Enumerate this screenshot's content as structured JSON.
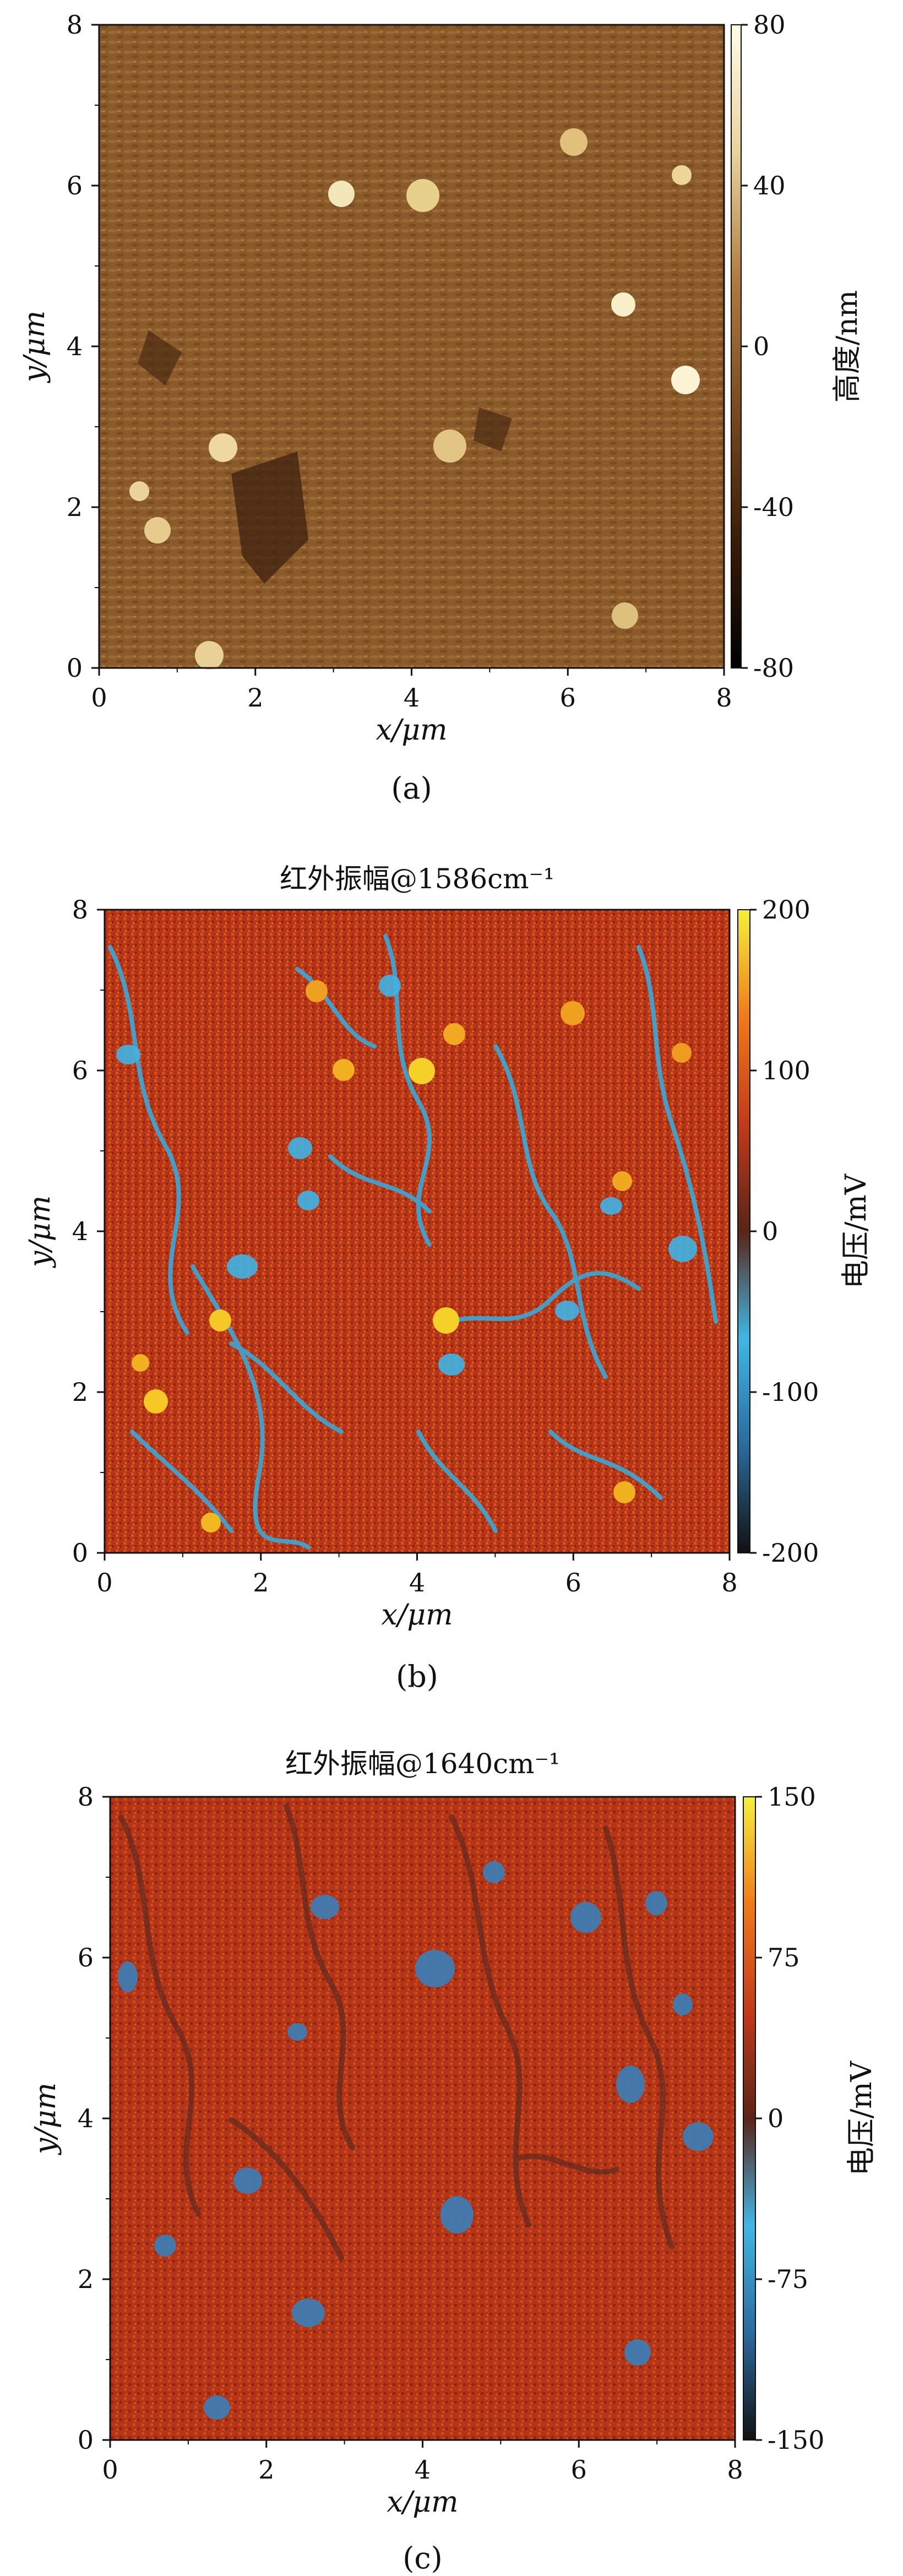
{
  "chart_data": [
    {
      "type": "heatmap",
      "caption": "(a)",
      "title": "",
      "xlabel": "x/μm",
      "ylabel": "y/μm",
      "xlim": [
        0,
        8
      ],
      "ylim": [
        0,
        8
      ],
      "xticks": [
        "0",
        "2",
        "4",
        "6",
        "8"
      ],
      "yticks": [
        "0",
        "2",
        "4",
        "6",
        "8"
      ],
      "colorbar": {
        "label": "高度/nm",
        "range": [
          -80,
          80
        ],
        "ticks": [
          "80",
          "40",
          "0",
          "-40",
          "-80"
        ],
        "colors": [
          "#000000",
          "#3a1d08",
          "#7a4a1e",
          "#b07a3a",
          "#e8d29a",
          "#fffbe6"
        ]
      }
    },
    {
      "type": "heatmap",
      "caption": "(b)",
      "title": "红外振幅@1586cm⁻¹",
      "xlabel": "x/μm",
      "ylabel": "y/μm",
      "xlim": [
        0,
        8
      ],
      "ylim": [
        0,
        8
      ],
      "xticks": [
        "0",
        "2",
        "4",
        "6",
        "8"
      ],
      "yticks": [
        "0",
        "2",
        "4",
        "6",
        "8"
      ],
      "colorbar": {
        "label": "电压/mV",
        "range": [
          -200,
          200
        ],
        "ticks": [
          "200",
          "100",
          "0",
          "-100",
          "-200"
        ],
        "colors": [
          "#111111",
          "#2b6a9e",
          "#3fb7e6",
          "#5a2418",
          "#c23a1a",
          "#ef7a1a",
          "#f5f03a"
        ]
      }
    },
    {
      "type": "heatmap",
      "caption": "(c)",
      "title": "红外振幅@1640cm⁻¹",
      "xlabel": "x/μm",
      "ylabel": "y/μm",
      "xlim": [
        0,
        8
      ],
      "ylim": [
        0,
        8
      ],
      "xticks": [
        "0",
        "2",
        "4",
        "6",
        "8"
      ],
      "yticks": [
        "0",
        "2",
        "4",
        "6",
        "8"
      ],
      "colorbar": {
        "label": "电压/mV",
        "range": [
          -150,
          150
        ],
        "ticks": [
          "150",
          "75",
          "0",
          "-75",
          "-150"
        ],
        "colors": [
          "#111111",
          "#2b6a9e",
          "#3fb7e6",
          "#5a2418",
          "#c23a1a",
          "#ef7a1a",
          "#f5f03a"
        ]
      }
    }
  ]
}
